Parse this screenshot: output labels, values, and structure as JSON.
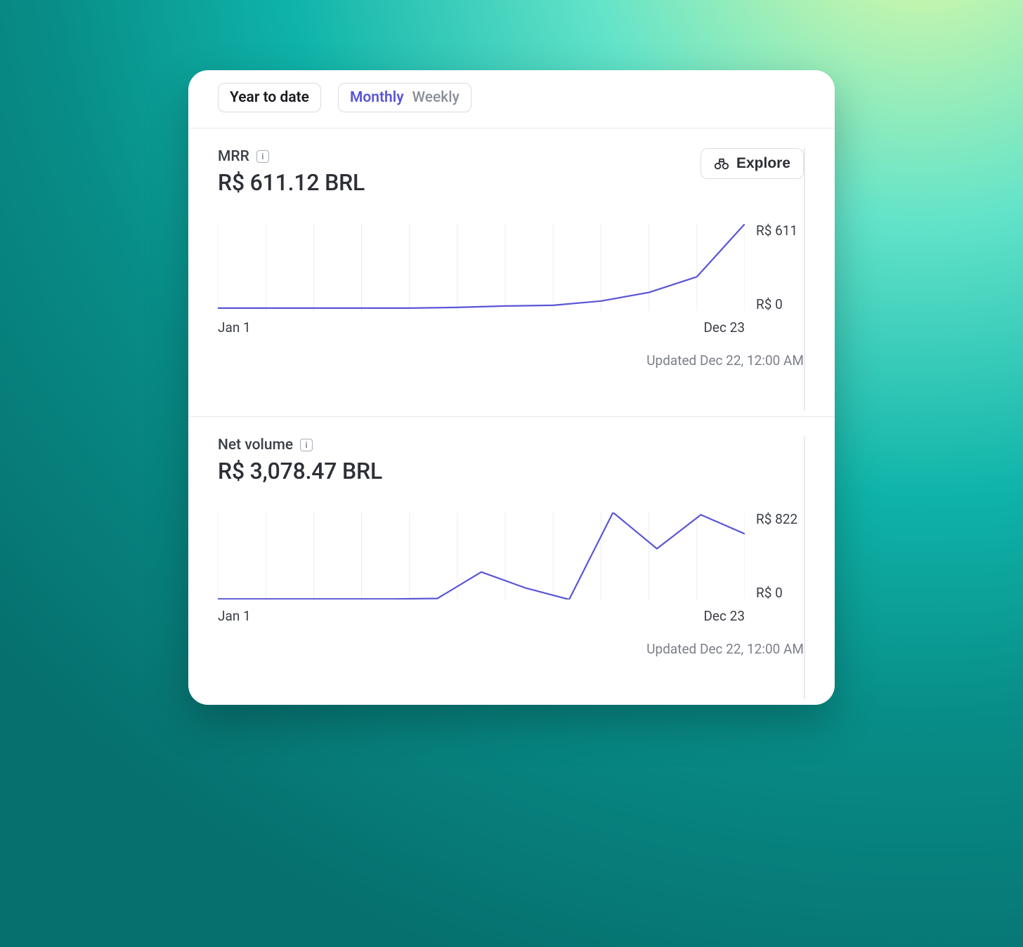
{
  "controls": {
    "range": {
      "label": "Year to date"
    },
    "granularity": {
      "active": "Monthly",
      "inactive": "Weekly"
    }
  },
  "explore_button": {
    "label": "Explore"
  },
  "charts": [
    {
      "id": "mrr",
      "title": "MRR",
      "value": "R$ 611.12 BRL",
      "has_explore": true,
      "chart": {
        "type": "line",
        "line_color": "#5a55d6",
        "line_width": 2.2,
        "grid_color": "#eceef2",
        "background_color": "#ffffff",
        "n_gridlines": 11,
        "values": [
          20,
          20,
          20,
          20,
          20,
          25,
          35,
          40,
          70,
          130,
          240,
          611
        ],
        "ymin": 0,
        "ymax": 611,
        "y_top_label": "R$ 611",
        "y_bottom_label": "R$ 0"
      },
      "x_start": "Jan 1",
      "x_end": "Dec 23",
      "updated": "Updated Dec 22, 12:00 AM"
    },
    {
      "id": "net-volume",
      "title": "Net volume",
      "value": "R$ 3,078.47 BRL",
      "has_explore": false,
      "chart": {
        "type": "line",
        "line_color": "#5a55d6",
        "line_width": 2.2,
        "grid_color": "#eceef2",
        "background_color": "#ffffff",
        "n_gridlines": 11,
        "values": [
          5,
          5,
          5,
          5,
          5,
          10,
          260,
          110,
          0,
          822,
          480,
          800,
          620
        ],
        "ymin": 0,
        "ymax": 822,
        "y_top_label": "R$ 822",
        "y_bottom_label": "R$ 0"
      },
      "x_start": "Jan 1",
      "x_end": "Dec 23",
      "updated": "Updated Dec 22, 12:00 AM"
    }
  ]
}
